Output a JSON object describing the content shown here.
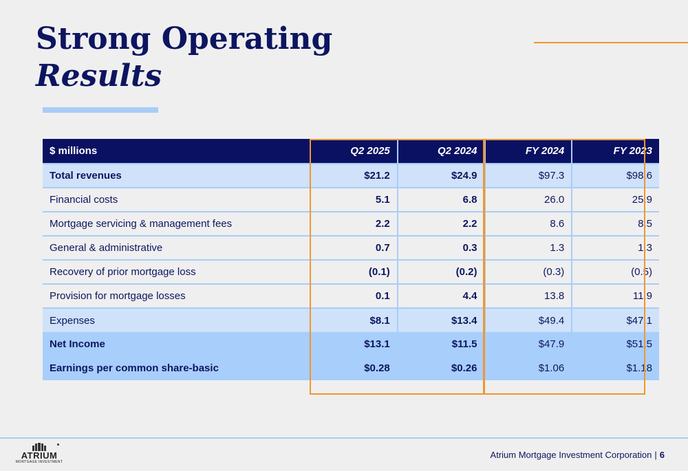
{
  "title": {
    "line1": "Strong Operating",
    "line2": "Results"
  },
  "table": {
    "headers": [
      "$ millions",
      "Q2 2025",
      "Q2 2024",
      "FY 2024",
      "FY 2023"
    ],
    "rows": [
      {
        "label": "Total revenues",
        "values": [
          "$21.2",
          "$24.9",
          "$97.3",
          "$98.6"
        ]
      },
      {
        "label": "Financial costs",
        "values": [
          "5.1",
          "6.8",
          "26.0",
          "25.9"
        ]
      },
      {
        "label": "Mortgage servicing & management fees",
        "values": [
          "2.2",
          "2.2",
          "8.6",
          "8.5"
        ]
      },
      {
        "label": "General & administrative",
        "values": [
          "0.7",
          "0.3",
          "1.3",
          "1.3"
        ]
      },
      {
        "label": "Recovery of prior mortgage loss",
        "values": [
          "(0.1)",
          "(0.2)",
          "(0.3)",
          "(0.5)"
        ]
      },
      {
        "label": "Provision for mortgage losses",
        "values": [
          "0.1",
          "4.4",
          "13.8",
          "11.9"
        ]
      },
      {
        "label": "Expenses",
        "values": [
          "$8.1",
          "$13.4",
          "$49.4",
          "$47.1"
        ]
      },
      {
        "label": "Net Income",
        "values": [
          "$13.1",
          "$11.5",
          "$47.9",
          "$51.5"
        ]
      },
      {
        "label": "Earnings per common share-basic",
        "values": [
          "$0.28",
          "$0.26",
          "$1.06",
          "$1.18"
        ]
      }
    ]
  },
  "footer": {
    "company": "Atrium Mortgage Investment Corporation",
    "separator": "|",
    "page": "6",
    "logo_name": "ATRIUM",
    "logo_sub": "MORTGAGE INVESTMENT"
  },
  "colors": {
    "navy": "#0a1162",
    "light_blue": "#cfe2f9",
    "mid_blue": "#a8cefb",
    "orange": "#f0962e"
  }
}
